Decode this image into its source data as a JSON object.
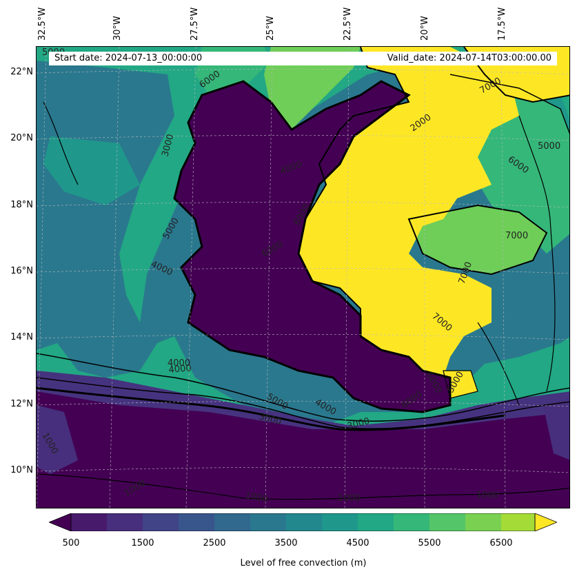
{
  "map": {
    "start_date": "Start date: 2024-07-13_00:00:00",
    "valid_date": "Valid_date: 2024-07-14T03:00:00.00",
    "longitude_labels": [
      "32.5°W",
      "30°W",
      "27.5°W",
      "25°W",
      "22.5°W",
      "20°W",
      "17.5°W"
    ],
    "latitude_labels": [
      "22°N",
      "20°N",
      "18°N",
      "16°N",
      "14°N",
      "12°N",
      "10°N"
    ],
    "contour_labels": [
      "5000",
      "6000",
      "7000",
      "6000",
      "5000",
      "2000",
      "7000",
      "6000",
      "5000",
      "3000",
      "4000",
      "4000",
      "6000",
      "4000",
      "6000",
      "1000",
      "7000",
      "5000",
      "4000",
      "3000",
      "3000",
      "1000",
      "1000",
      "1000",
      "1000",
      "4000",
      "7000",
      "5000",
      "6000"
    ]
  },
  "colorbar": {
    "label": "Level of free convection (m)",
    "tick_labels": [
      "500",
      "1500",
      "2500",
      "3500",
      "4500",
      "5500",
      "6500"
    ],
    "levels": [
      500,
      1000,
      1500,
      2000,
      2500,
      3000,
      3500,
      4000,
      4500,
      5000,
      5500,
      6000,
      6500,
      7000
    ],
    "colors": [
      "#440154",
      "#481a6c",
      "#472f7d",
      "#414487",
      "#39568c",
      "#31688e",
      "#2a788e",
      "#23888e",
      "#1f988b",
      "#22a884",
      "#35b779",
      "#54c568",
      "#7ad151",
      "#a5db36",
      "#d2e21b",
      "#fde725"
    ],
    "extend": "both"
  },
  "colors": {
    "deep": "#440154",
    "low": "#46337f",
    "mid": "#2a788e",
    "midhigh": "#22a884",
    "high": "#6ece58",
    "top": "#fde725"
  }
}
